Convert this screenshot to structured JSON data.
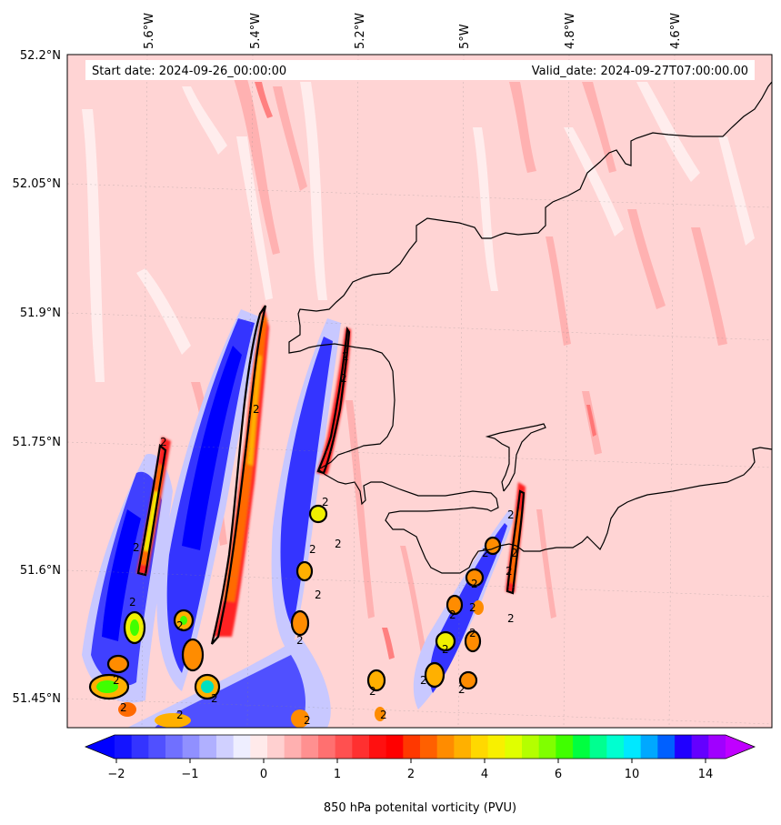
{
  "header": {
    "start_date": "Start date: 2024-09-26_00:00:00",
    "valid_date": "Valid_date: 2024-09-27T07:00:00.00"
  },
  "axes": {
    "lon_labels": [
      "5.6°W",
      "5.4°W",
      "5.2°W",
      "5°W",
      "4.8°W",
      "4.6°W"
    ],
    "lat_labels": [
      "52.2°N",
      "52.05°N",
      "51.9°N",
      "51.75°N",
      "51.6°N",
      "51.45°N"
    ]
  },
  "colorbar": {
    "label": "850 hPa potenital vorticity (PVU)",
    "tick_labels": [
      "−2",
      "−1",
      "0",
      "1",
      "2",
      "4",
      "6",
      "10",
      "14"
    ],
    "colors": [
      "#1414ff",
      "#3434ff",
      "#5050ff",
      "#7070ff",
      "#9090ff",
      "#b0b0ff",
      "#d0d0ff",
      "#eeeeff",
      "#ffeaea",
      "#ffd0d0",
      "#ffb0b0",
      "#ff9090",
      "#ff7070",
      "#ff5050",
      "#ff3030",
      "#ff1010",
      "#ff0000",
      "#ff3800",
      "#ff6000",
      "#ff8c00",
      "#ffb000",
      "#ffd800",
      "#f8f000",
      "#e0ff00",
      "#b4ff00",
      "#80ff00",
      "#40ff00",
      "#00ff40",
      "#00ff90",
      "#00ffd0",
      "#00e8ff",
      "#00a8ff",
      "#0060ff",
      "#2000ff",
      "#6400ff",
      "#a000ff"
    ],
    "under_color": "#0000ff",
    "over_color": "#c000ff"
  },
  "map": {
    "background_color": "#ffd4d4",
    "contour_label": "2"
  }
}
